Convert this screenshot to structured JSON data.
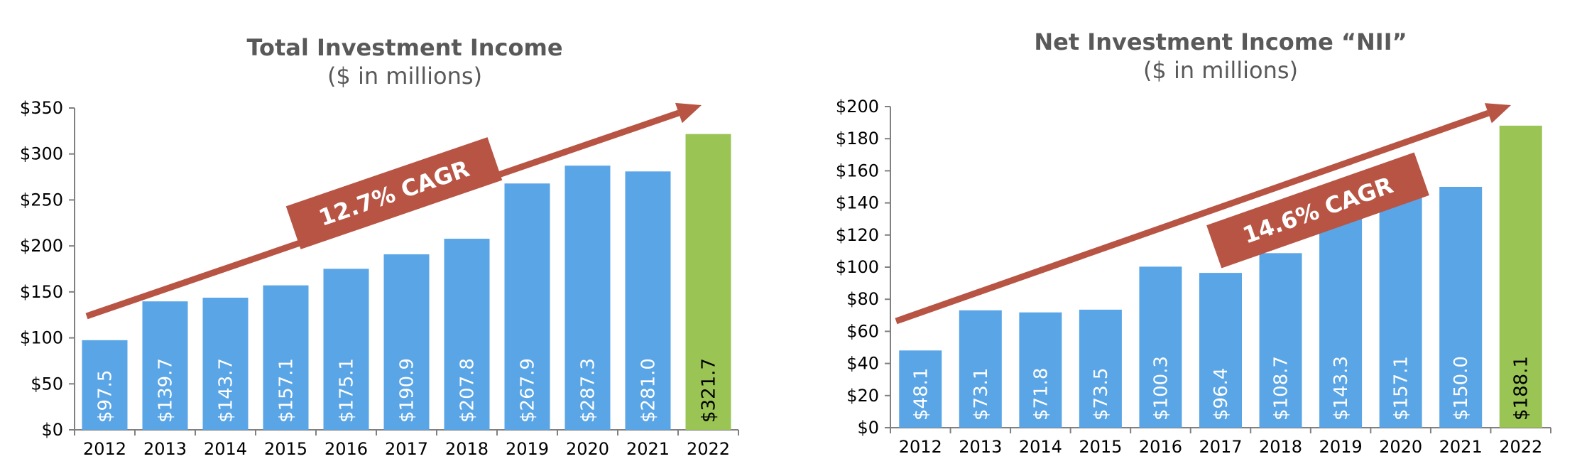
{
  "colors": {
    "bar": "#5aa5e6",
    "highlight": "#9ac454",
    "arrow": "#b85443",
    "text": "#595959"
  },
  "chart_data": [
    {
      "type": "bar",
      "title": "Total Investment Income",
      "subtitle": "($ in millions)",
      "categories": [
        "2012",
        "2013",
        "2014",
        "2015",
        "2016",
        "2017",
        "2018",
        "2019",
        "2020",
        "2021",
        "2022"
      ],
      "values": [
        97.5,
        139.7,
        143.7,
        157.1,
        175.1,
        190.9,
        207.8,
        267.9,
        287.3,
        281.0,
        321.7
      ],
      "data_labels": [
        "$97.5",
        "$139.7",
        "$143.7",
        "$157.1",
        "$175.1",
        "$190.9",
        "$207.8",
        "$267.9",
        "$287.3",
        "$281.0",
        "$321.7"
      ],
      "ylim": [
        0,
        350
      ],
      "yticks": [
        0,
        50,
        100,
        150,
        200,
        250,
        300,
        350
      ],
      "ytick_labels": [
        "$0",
        "$50",
        "$100",
        "$150",
        "$200",
        "$250",
        "$300",
        "$350"
      ],
      "highlight_category": "2022",
      "annotation": "12.7% CAGR",
      "grid": false,
      "legend": "none"
    },
    {
      "type": "bar",
      "title": "Net Investment Income “NII”",
      "subtitle": "($ in millions)",
      "categories": [
        "2012",
        "2013",
        "2014",
        "2015",
        "2016",
        "2017",
        "2018",
        "2019",
        "2020",
        "2021",
        "2022"
      ],
      "values": [
        48.1,
        73.1,
        71.8,
        73.5,
        100.3,
        96.4,
        108.7,
        143.3,
        157.1,
        150.0,
        188.1
      ],
      "data_labels": [
        "$48.1",
        "$73.1",
        "$71.8",
        "$73.5",
        "$100.3",
        "$96.4",
        "$108.7",
        "$143.3",
        "$157.1",
        "$150.0",
        "$188.1"
      ],
      "ylim": [
        0,
        200
      ],
      "yticks": [
        0,
        20,
        40,
        60,
        80,
        100,
        120,
        140,
        160,
        180,
        200
      ],
      "ytick_labels": [
        "$0",
        "$20",
        "$40",
        "$60",
        "$80",
        "$100",
        "$120",
        "$140",
        "$160",
        "$180",
        "$200"
      ],
      "highlight_category": "2022",
      "annotation": "14.6% CAGR",
      "grid": false,
      "legend": "none"
    }
  ]
}
